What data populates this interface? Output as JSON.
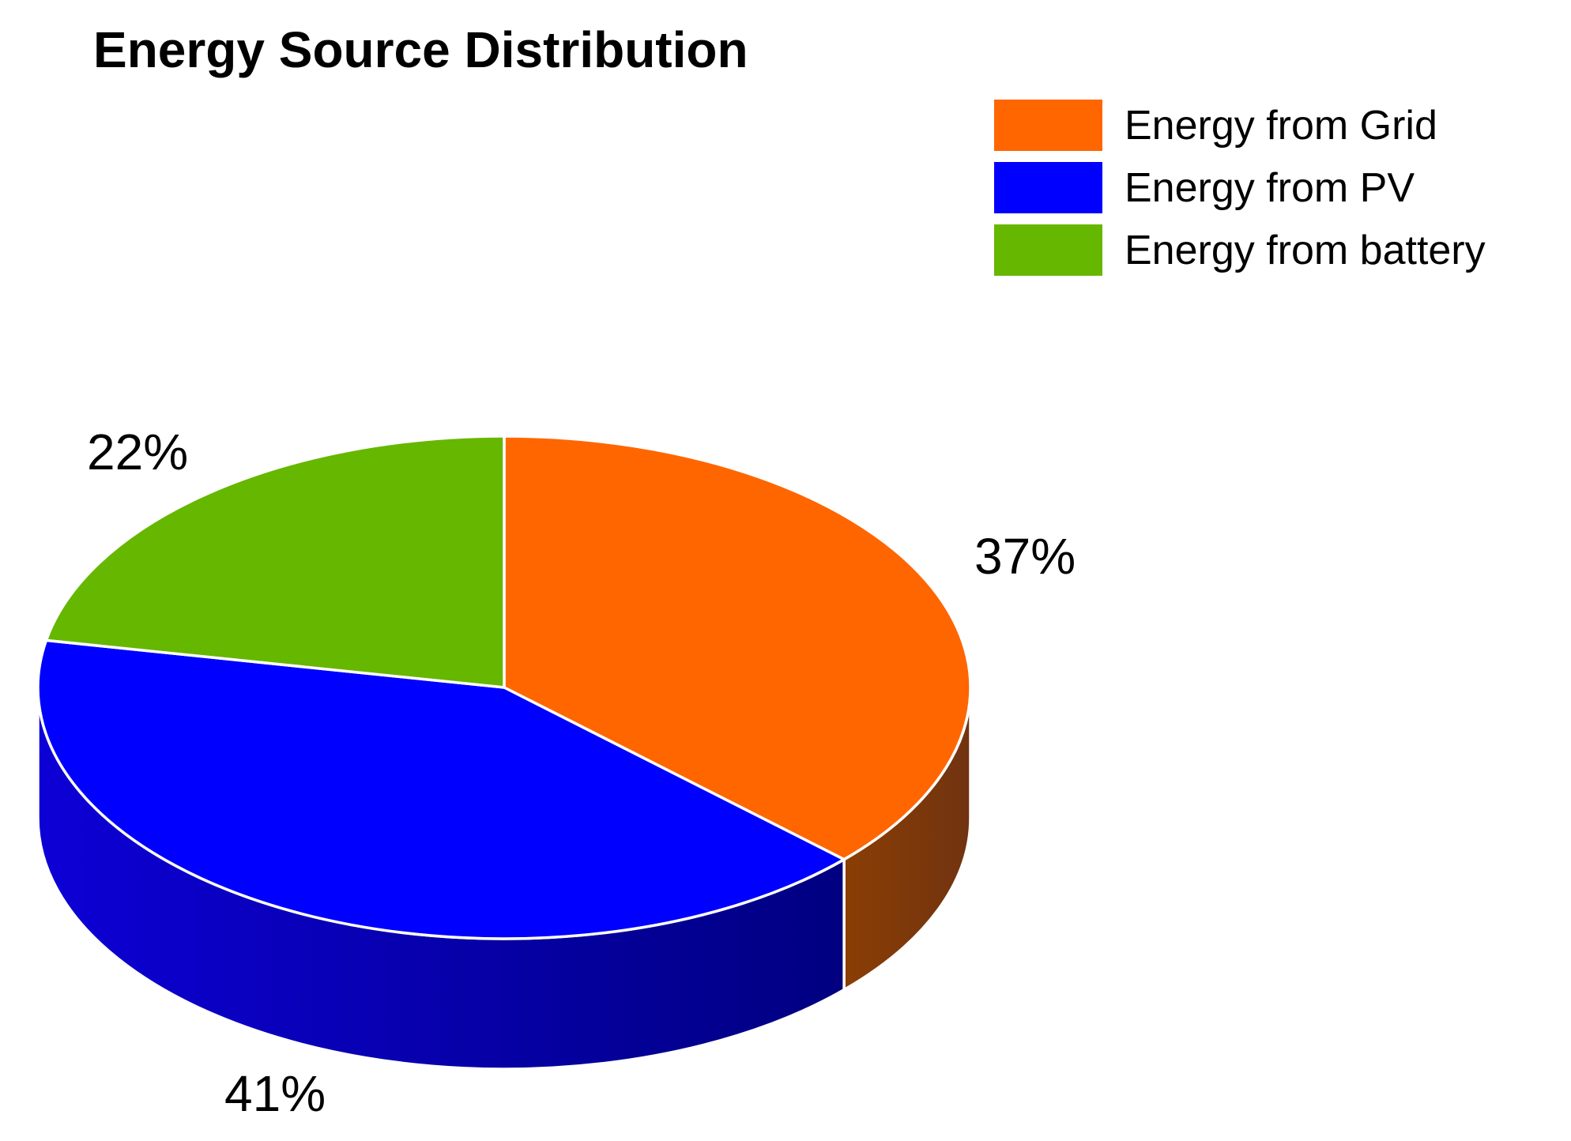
{
  "title": "Energy Source Distribution",
  "chart_data": {
    "type": "pie",
    "style": "3d",
    "title": "Energy Source Distribution",
    "unit": "percent",
    "total": 100,
    "start_angle_deg": 90,
    "direction": "clockwise",
    "legend_position": "top-right",
    "grid": false,
    "series": [
      {
        "id": "grid",
        "label": "Energy from Grid",
        "value": 37,
        "pct": "37%",
        "color": "#FF6600",
        "side_color": "#713310",
        "side_color_light": "#8A3E04"
      },
      {
        "id": "pv",
        "label": "Energy from PV",
        "value": 41,
        "pct": "41%",
        "color": "#0000FF",
        "side_color": "#000080",
        "side_color_light": "#0D00D6"
      },
      {
        "id": "battery",
        "label": "Energy from battery",
        "value": 22,
        "pct": "22%",
        "color": "#66B700",
        "side_color": "#336000",
        "side_color_light": "#336000"
      }
    ]
  }
}
